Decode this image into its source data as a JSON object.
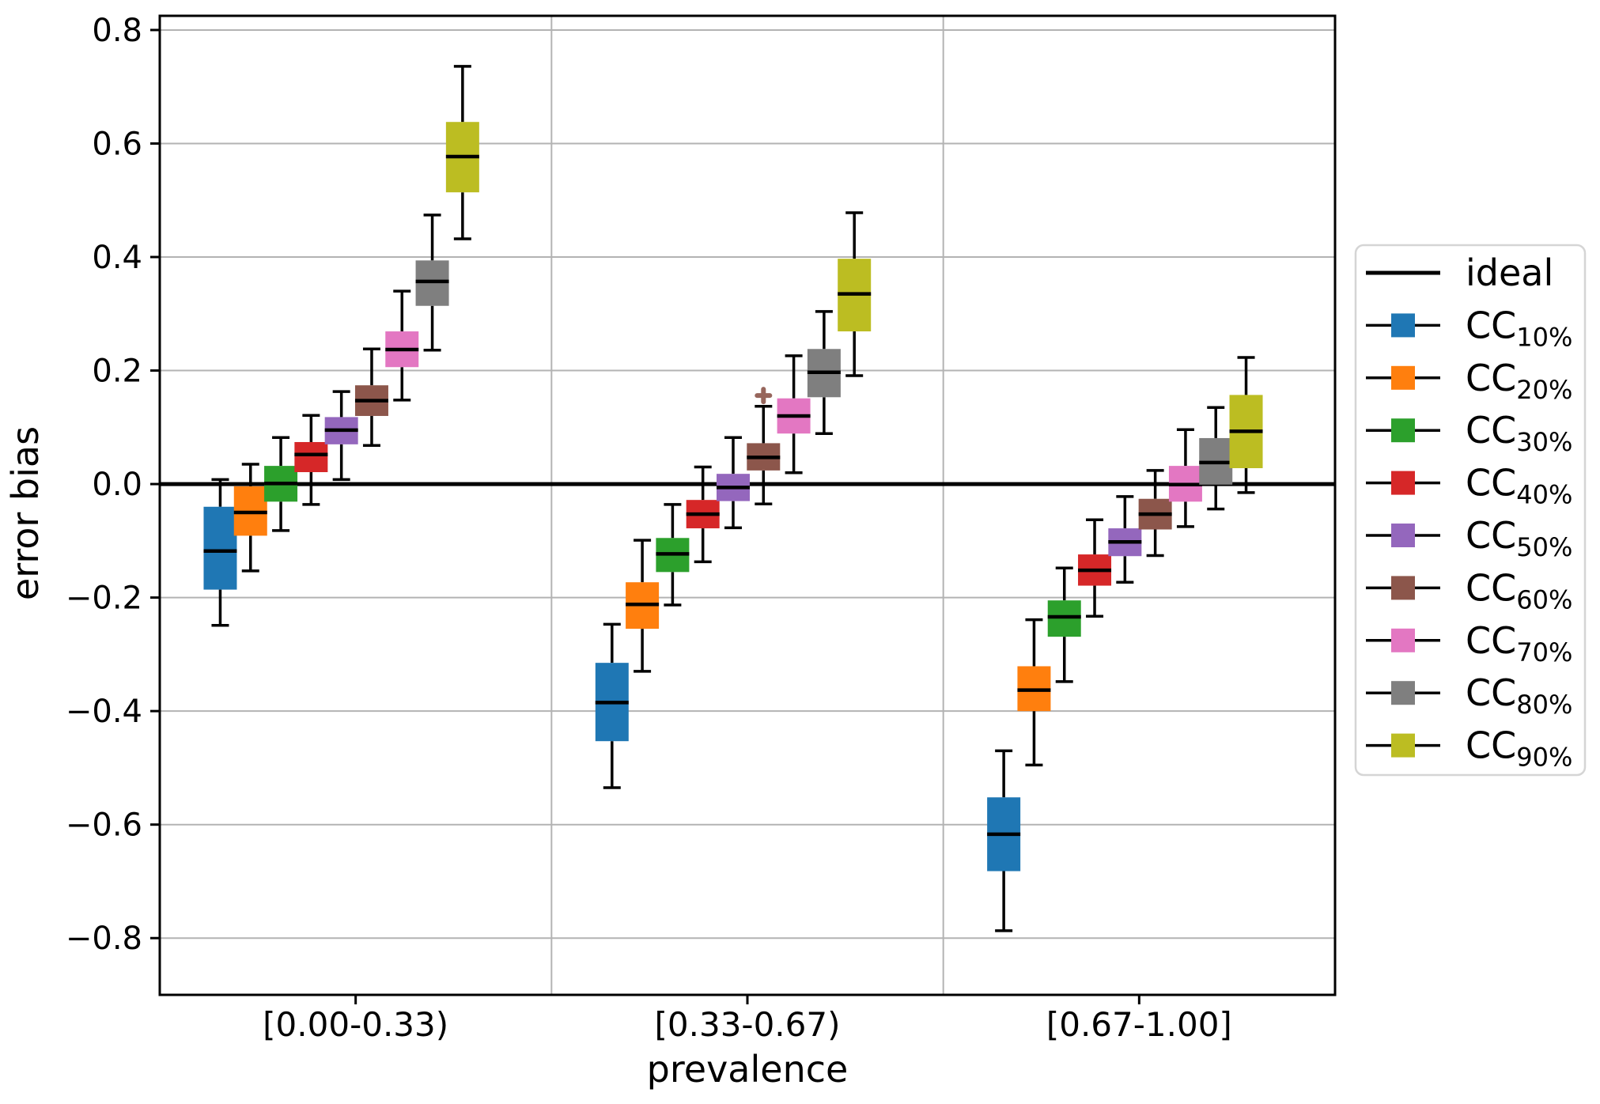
{
  "figure": {
    "background": "#ffffff"
  },
  "chart_data": {
    "type": "boxplot",
    "title": "",
    "xlabel": "prevalence",
    "ylabel": "error bias",
    "ylim": [
      -0.9,
      0.825
    ],
    "yticks": [
      0.8,
      0.6,
      0.4,
      0.2,
      0.0,
      -0.2,
      -0.4,
      -0.6,
      -0.8
    ],
    "ytick_labels": [
      "0.8",
      "0.6",
      "0.4",
      "0.2",
      "0.0",
      "−0.2",
      "−0.4",
      "−0.6",
      "−0.8"
    ],
    "categories": [
      "[0.00-0.33)",
      "[0.33-0.67)",
      "[0.67-1.00]"
    ],
    "grid": {
      "show": true,
      "color": "#b3b3b3"
    },
    "group_separator_color": "#b3b3b3",
    "ideal_line": {
      "label": "ideal",
      "value": 0.0,
      "color": "#000000"
    },
    "legend": {
      "position": "right",
      "border_color": "#d5d5d5",
      "background": "#ffffff"
    },
    "series": [
      {
        "name": "CC",
        "sub": "10%",
        "label": "CC10%",
        "color": "#1f77b4",
        "boxes": [
          {
            "group": "[0.00-0.33)",
            "whislo": -0.249,
            "q1": -0.186,
            "med": -0.118,
            "q3": -0.04,
            "whishi": 0.008,
            "fliers": []
          },
          {
            "group": "[0.33-0.67)",
            "whislo": -0.535,
            "q1": -0.453,
            "med": -0.385,
            "q3": -0.315,
            "whishi": -0.247,
            "fliers": []
          },
          {
            "group": "[0.67-1.00]",
            "whislo": -0.787,
            "q1": -0.682,
            "med": -0.617,
            "q3": -0.552,
            "whishi": -0.47,
            "fliers": []
          }
        ]
      },
      {
        "name": "CC",
        "sub": "20%",
        "label": "CC20%",
        "color": "#ff7f0e",
        "boxes": [
          {
            "group": "[0.00-0.33)",
            "whislo": -0.153,
            "q1": -0.091,
            "med": -0.05,
            "q3": -0.004,
            "whishi": 0.035,
            "fliers": []
          },
          {
            "group": "[0.33-0.67)",
            "whislo": -0.33,
            "q1": -0.255,
            "med": -0.212,
            "q3": -0.173,
            "whishi": -0.099,
            "fliers": []
          },
          {
            "group": "[0.67-1.00]",
            "whislo": -0.495,
            "q1": -0.4,
            "med": -0.363,
            "q3": -0.321,
            "whishi": -0.239,
            "fliers": []
          }
        ]
      },
      {
        "name": "CC",
        "sub": "30%",
        "label": "CC30%",
        "color": "#2ca02c",
        "boxes": [
          {
            "group": "[0.00-0.33)",
            "whislo": -0.082,
            "q1": -0.031,
            "med": 0.001,
            "q3": 0.032,
            "whishi": 0.082,
            "fliers": []
          },
          {
            "group": "[0.33-0.67)",
            "whislo": -0.213,
            "q1": -0.155,
            "med": -0.123,
            "q3": -0.095,
            "whishi": -0.036,
            "fliers": []
          },
          {
            "group": "[0.67-1.00]",
            "whislo": -0.348,
            "q1": -0.269,
            "med": -0.234,
            "q3": -0.205,
            "whishi": -0.148,
            "fliers": []
          }
        ]
      },
      {
        "name": "CC",
        "sub": "40%",
        "label": "CC40%",
        "color": "#d62728",
        "boxes": [
          {
            "group": "[0.00-0.33)",
            "whislo": -0.036,
            "q1": 0.021,
            "med": 0.052,
            "q3": 0.074,
            "whishi": 0.121,
            "fliers": []
          },
          {
            "group": "[0.33-0.67)",
            "whislo": -0.137,
            "q1": -0.078,
            "med": -0.053,
            "q3": -0.028,
            "whishi": 0.03,
            "fliers": []
          },
          {
            "group": "[0.67-1.00]",
            "whislo": -0.233,
            "q1": -0.179,
            "med": -0.152,
            "q3": -0.124,
            "whishi": -0.063,
            "fliers": []
          }
        ]
      },
      {
        "name": "CC",
        "sub": "50%",
        "label": "CC50%",
        "color": "#9467bd",
        "boxes": [
          {
            "group": "[0.00-0.33)",
            "whislo": 0.008,
            "q1": 0.07,
            "med": 0.095,
            "q3": 0.118,
            "whishi": 0.163,
            "fliers": []
          },
          {
            "group": "[0.33-0.67)",
            "whislo": -0.077,
            "q1": -0.03,
            "med": -0.006,
            "q3": 0.018,
            "whishi": 0.082,
            "fliers": []
          },
          {
            "group": "[0.67-1.00]",
            "whislo": -0.173,
            "q1": -0.127,
            "med": -0.102,
            "q3": -0.078,
            "whishi": -0.022,
            "fliers": []
          }
        ]
      },
      {
        "name": "CC",
        "sub": "60%",
        "label": "CC60%",
        "color": "#8c564b",
        "boxes": [
          {
            "group": "[0.00-0.33)",
            "whislo": 0.068,
            "q1": 0.12,
            "med": 0.147,
            "q3": 0.174,
            "whishi": 0.238,
            "fliers": []
          },
          {
            "group": "[0.33-0.67)",
            "whislo": -0.035,
            "q1": 0.024,
            "med": 0.047,
            "q3": 0.072,
            "whishi": 0.137,
            "fliers": [
              0.156
            ]
          },
          {
            "group": "[0.67-1.00]",
            "whislo": -0.126,
            "q1": -0.08,
            "med": -0.053,
            "q3": -0.026,
            "whishi": 0.024,
            "fliers": []
          }
        ]
      },
      {
        "name": "CC",
        "sub": "70%",
        "label": "CC70%",
        "color": "#e377c2",
        "boxes": [
          {
            "group": "[0.00-0.33)",
            "whislo": 0.148,
            "q1": 0.206,
            "med": 0.237,
            "q3": 0.269,
            "whishi": 0.34,
            "fliers": []
          },
          {
            "group": "[0.33-0.67)",
            "whislo": 0.02,
            "q1": 0.089,
            "med": 0.12,
            "q3": 0.151,
            "whishi": 0.226,
            "fliers": []
          },
          {
            "group": "[0.67-1.00]",
            "whislo": -0.075,
            "q1": -0.031,
            "med": -0.001,
            "q3": 0.032,
            "whishi": 0.096,
            "fliers": []
          }
        ]
      },
      {
        "name": "CC",
        "sub": "80%",
        "label": "CC80%",
        "color": "#7f7f7f",
        "boxes": [
          {
            "group": "[0.00-0.33)",
            "whislo": 0.236,
            "q1": 0.314,
            "med": 0.357,
            "q3": 0.394,
            "whishi": 0.474,
            "fliers": []
          },
          {
            "group": "[0.33-0.67)",
            "whislo": 0.089,
            "q1": 0.153,
            "med": 0.197,
            "q3": 0.238,
            "whishi": 0.304,
            "fliers": []
          },
          {
            "group": "[0.67-1.00]",
            "whislo": -0.044,
            "q1": -0.001,
            "med": 0.038,
            "q3": 0.081,
            "whishi": 0.135,
            "fliers": []
          }
        ]
      },
      {
        "name": "CC",
        "sub": "90%",
        "label": "CC90%",
        "color": "#bcbd22",
        "boxes": [
          {
            "group": "[0.00-0.33)",
            "whislo": 0.432,
            "q1": 0.514,
            "med": 0.577,
            "q3": 0.638,
            "whishi": 0.736,
            "fliers": []
          },
          {
            "group": "[0.33-0.67)",
            "whislo": 0.191,
            "q1": 0.269,
            "med": 0.335,
            "q3": 0.397,
            "whishi": 0.478,
            "fliers": []
          },
          {
            "group": "[0.67-1.00]",
            "whislo": -0.015,
            "q1": 0.028,
            "med": 0.093,
            "q3": 0.157,
            "whishi": 0.223,
            "fliers": []
          }
        ]
      }
    ]
  }
}
